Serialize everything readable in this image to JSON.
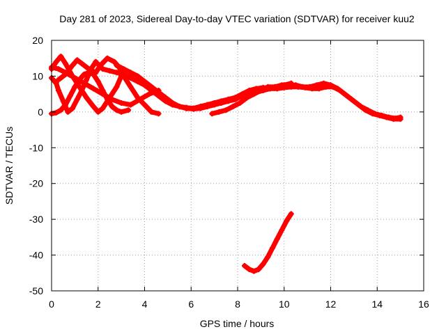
{
  "chart_data": {
    "type": "scatter",
    "title": "Day 281 of 2023, Sidereal Day-to-day VTEC variation (SDTVAR) for receiver kuu2",
    "xlabel": "GPS time / hours",
    "ylabel": "SDTVAR / TECUs",
    "xlim": [
      0,
      16
    ],
    "ylim": [
      -50,
      20
    ],
    "xticks": [
      0,
      2,
      4,
      6,
      8,
      10,
      12,
      14,
      16
    ],
    "yticks": [
      -50,
      -40,
      -30,
      -20,
      -10,
      0,
      10,
      20
    ],
    "grid": true,
    "marker": "+",
    "color": "#ff0000",
    "series": [
      {
        "name": "arc-1",
        "x": [
          0.0,
          0.2,
          0.3,
          0.5,
          0.7,
          0.9,
          1.1,
          1.3,
          1.5,
          1.7,
          1.9
        ],
        "y": [
          9.5,
          8.0,
          6.0,
          3.0,
          0.0,
          1.0,
          3.5,
          6.0,
          9.0,
          12.0,
          14.0
        ]
      },
      {
        "name": "arc-2",
        "x": [
          0.0,
          0.2,
          0.4,
          0.6,
          0.9,
          1.2,
          1.5,
          1.8,
          2.0,
          2.2,
          2.5,
          2.8,
          3.0
        ],
        "y": [
          12.0,
          14.0,
          15.5,
          13.5,
          10.0,
          7.0,
          4.0,
          1.5,
          0.0,
          1.0,
          4.0,
          7.0,
          10.0
        ]
      },
      {
        "name": "arc-3",
        "x": [
          0.0,
          0.2,
          0.4,
          0.6,
          0.8,
          1.0,
          1.2,
          1.4,
          1.6,
          1.8,
          2.0,
          2.2,
          2.4,
          2.6,
          2.8,
          3.0,
          3.3
        ],
        "y": [
          -0.5,
          -0.2,
          0.5,
          2.0,
          4.5,
          7.0,
          9.0,
          10.5,
          11.0,
          10.5,
          8.5,
          6.0,
          3.5,
          1.5,
          0.5,
          0.0,
          0.5
        ]
      },
      {
        "name": "arc-4",
        "x": [
          0.0,
          0.3,
          0.6,
          1.0,
          1.4,
          1.8,
          2.2,
          2.6,
          3.0,
          3.4,
          3.8,
          4.2,
          4.6
        ],
        "y": [
          12.5,
          12.0,
          11.0,
          9.5,
          8.0,
          6.5,
          5.0,
          3.5,
          2.5,
          2.0,
          3.5,
          5.0,
          6.0
        ]
      },
      {
        "name": "arc-5",
        "x": [
          0.3,
          0.6,
          0.9,
          1.1,
          1.3,
          1.6,
          1.9,
          2.1,
          2.4,
          2.7,
          2.9,
          3.1,
          3.4,
          3.7,
          4.0,
          4.3,
          4.6
        ],
        "y": [
          9.0,
          10.5,
          13.0,
          14.5,
          13.5,
          12.0,
          11.0,
          13.0,
          15.0,
          14.0,
          12.5,
          10.0,
          7.0,
          4.0,
          2.0,
          0.0,
          -0.5
        ]
      },
      {
        "name": "arc-6",
        "x": [
          1.9,
          2.2,
          2.5,
          2.8,
          3.1,
          3.4,
          3.7,
          4.0,
          4.3,
          4.6,
          4.9,
          5.2,
          5.5,
          5.8,
          6.1,
          6.4,
          6.7,
          7.0,
          7.3,
          7.6,
          7.9,
          8.2,
          8.5,
          8.8,
          9.1,
          9.4,
          9.7,
          10.0,
          10.3
        ],
        "y": [
          14.0,
          12.0,
          11.5,
          11.0,
          10.5,
          9.5,
          8.5,
          7.5,
          6.0,
          4.5,
          3.0,
          2.0,
          1.5,
          1.2,
          1.0,
          1.5,
          2.0,
          2.5,
          3.0,
          3.5,
          4.0,
          4.5,
          5.0,
          5.5,
          6.0,
          6.5,
          7.0,
          7.5,
          8.0
        ]
      },
      {
        "name": "arc-7",
        "x": [
          2.8,
          3.1,
          3.4,
          3.7,
          4.0,
          4.3,
          4.6,
          4.9,
          5.2,
          5.5,
          5.8,
          6.1,
          6.4,
          6.7,
          7.0,
          7.3,
          7.6,
          7.9,
          8.2,
          8.5
        ],
        "y": [
          13.0,
          12.0,
          11.0,
          10.0,
          8.5,
          7.0,
          5.5,
          4.0,
          2.5,
          1.5,
          1.0,
          0.8,
          1.0,
          1.5,
          2.0,
          2.5,
          3.0,
          3.5,
          4.5,
          5.0
        ]
      },
      {
        "name": "arc-8",
        "x": [
          5.5,
          5.8,
          6.1,
          6.4,
          6.7,
          7.0,
          7.3,
          7.6,
          7.9,
          8.2,
          8.5,
          8.8,
          9.1,
          9.4,
          9.7,
          10.0,
          10.3,
          10.6,
          10.9,
          11.2,
          11.5,
          11.8,
          12.1,
          12.4,
          12.7,
          13.0,
          13.3,
          13.6,
          13.9,
          14.2,
          14.5,
          14.8,
          15.0
        ],
        "y": [
          1.5,
          1.0,
          1.0,
          1.5,
          2.0,
          2.5,
          3.0,
          3.5,
          4.0,
          5.0,
          6.0,
          6.5,
          6.8,
          6.5,
          6.5,
          6.8,
          7.0,
          7.0,
          6.8,
          6.5,
          6.5,
          7.0,
          7.0,
          6.0,
          4.5,
          3.0,
          1.5,
          0.5,
          -0.5,
          -1.0,
          -1.5,
          -1.8,
          -1.5
        ]
      },
      {
        "name": "arc-9",
        "x": [
          6.9,
          7.2,
          7.5,
          7.8,
          8.1,
          8.4,
          8.7,
          9.0,
          9.3,
          9.6,
          9.9,
          10.2,
          10.5,
          10.8,
          11.1,
          11.4,
          11.7,
          12.0,
          12.3,
          12.6,
          12.9,
          13.2,
          13.5,
          13.8,
          14.1,
          14.4,
          14.7,
          15.0
        ],
        "y": [
          -0.5,
          0.0,
          0.5,
          1.5,
          2.5,
          4.0,
          5.0,
          6.0,
          7.0,
          7.0,
          7.5,
          7.5,
          7.5,
          7.0,
          7.0,
          7.5,
          8.0,
          7.5,
          6.5,
          5.0,
          3.5,
          2.0,
          0.5,
          -0.5,
          -1.0,
          -1.5,
          -2.0,
          -2.0
        ]
      },
      {
        "name": "arc-10",
        "x": [
          8.3,
          8.5,
          8.7,
          8.9,
          9.1,
          9.3,
          9.5,
          9.7,
          9.9,
          10.1,
          10.3
        ],
        "y": [
          -43.0,
          -44.0,
          -44.5,
          -44.0,
          -42.5,
          -40.5,
          -38.0,
          -35.5,
          -33.0,
          -30.5,
          -28.5
        ]
      }
    ]
  }
}
